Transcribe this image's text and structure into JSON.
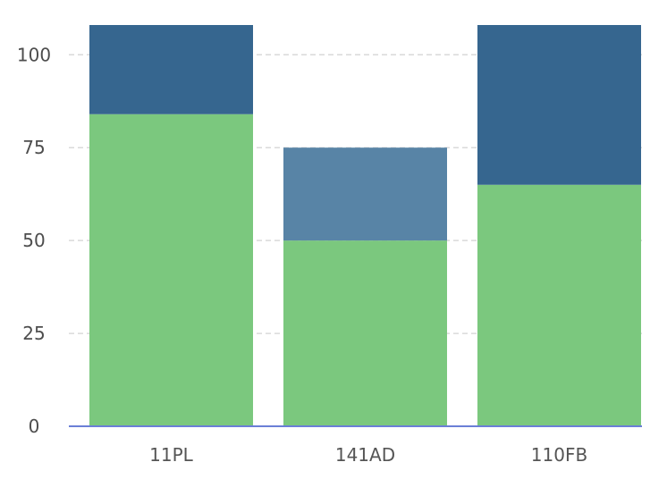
{
  "colors": {
    "background": "#ffffff",
    "gridline": "#d9d9d9",
    "baseline": "#6b7fd7",
    "tick_text": "#4d4d4d",
    "category_text": "#555555"
  },
  "chart_data": {
    "type": "bar",
    "stacked": true,
    "title": "",
    "xlabel": "",
    "ylabel": "",
    "categories": [
      "11PL",
      "141AD",
      "110FB"
    ],
    "ylim": [
      0,
      108
    ],
    "yticks": [
      0,
      25,
      50,
      75,
      100
    ],
    "grid": true,
    "series": [
      {
        "color": "#7bc87e",
        "values": [
          84,
          50,
          65
        ]
      },
      {
        "colors": [
          "#36668f",
          "#5884a6",
          "#36668f"
        ],
        "values": [
          24,
          25,
          43
        ]
      }
    ]
  }
}
